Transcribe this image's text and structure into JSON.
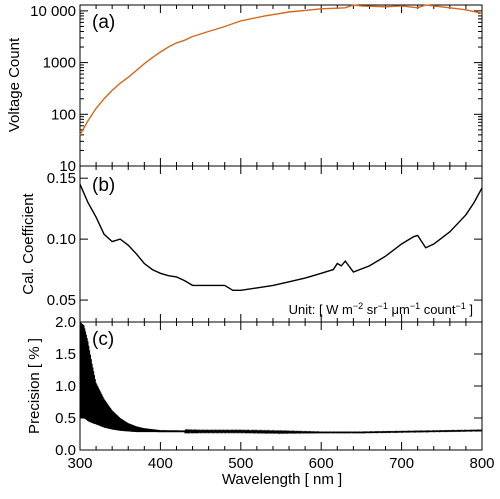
{
  "chart_data": [
    {
      "type": "line",
      "panel_label": "(a)",
      "ylabel": "Voltage Count",
      "y_scale": "log",
      "ylim": [
        10,
        13000
      ],
      "yticks": [
        10,
        100,
        1000,
        10000
      ],
      "ytick_labels": [
        "10",
        "100",
        "1000",
        "10 000"
      ],
      "xlim": [
        300,
        800
      ],
      "series": [
        {
          "color": "#d2691e",
          "x": [
            300,
            310,
            320,
            330,
            340,
            350,
            360,
            370,
            380,
            390,
            400,
            410,
            420,
            430,
            440,
            460,
            480,
            500,
            530,
            560,
            600,
            630,
            640,
            650,
            680,
            700,
            720,
            730,
            740,
            760,
            780,
            800
          ],
          "y": [
            40,
            75,
            130,
            200,
            290,
            400,
            520,
            700,
            950,
            1250,
            1600,
            2000,
            2400,
            2700,
            3200,
            4000,
            5000,
            6400,
            8000,
            9500,
            11000,
            11500,
            13000,
            12500,
            12000,
            12500,
            11500,
            13000,
            12500,
            11500,
            10500,
            9000
          ]
        }
      ]
    },
    {
      "type": "line",
      "panel_label": "(b)",
      "ylabel": "Cal. Coefficient",
      "ylim": [
        0.032,
        0.16
      ],
      "yticks": [
        0.05,
        0.1,
        0.15
      ],
      "ytick_labels": [
        "0.05",
        "0.10",
        "0.15"
      ],
      "xlim": [
        300,
        800
      ],
      "unit_note": {
        "prefix": "Unit: [ W m",
        "sup1": "−2",
        "mid1": " sr",
        "sup2": "−1",
        "mid2": " μm",
        "sup3": "−1",
        "mid3": " count",
        "sup4": "−1",
        "suffix": " ]"
      },
      "series": [
        {
          "color": "#000000",
          "x": [
            300,
            310,
            320,
            330,
            340,
            350,
            360,
            370,
            380,
            390,
            400,
            410,
            420,
            430,
            440,
            460,
            480,
            490,
            500,
            520,
            540,
            560,
            580,
            600,
            610,
            615,
            620,
            625,
            630,
            640,
            660,
            680,
            700,
            710,
            715,
            720,
            725,
            730,
            740,
            750,
            760,
            770,
            780,
            790,
            800
          ],
          "y": [
            0.145,
            0.13,
            0.118,
            0.104,
            0.098,
            0.1,
            0.095,
            0.088,
            0.08,
            0.075,
            0.072,
            0.07,
            0.069,
            0.066,
            0.062,
            0.062,
            0.062,
            0.058,
            0.058,
            0.06,
            0.062,
            0.065,
            0.068,
            0.072,
            0.074,
            0.075,
            0.08,
            0.078,
            0.082,
            0.073,
            0.078,
            0.086,
            0.096,
            0.1,
            0.102,
            0.103,
            0.098,
            0.093,
            0.096,
            0.101,
            0.106,
            0.113,
            0.12,
            0.13,
            0.142
          ]
        }
      ]
    },
    {
      "type": "line",
      "panel_label": "(c)",
      "ylabel": "Precision [ % ]",
      "xlabel": "Wavelength [ nm ]",
      "ylim": [
        0,
        2.0
      ],
      "yticks": [
        0.0,
        0.5,
        1.0,
        1.5,
        2.0
      ],
      "ytick_labels": [
        "0.0",
        "0.5",
        "1.0",
        "1.5",
        "2.0"
      ],
      "xlim": [
        300,
        800
      ],
      "xticks": [
        300,
        400,
        500,
        600,
        700,
        800
      ],
      "xtick_labels": [
        "300",
        "400",
        "500",
        "600",
        "700",
        "800"
      ],
      "series": [
        {
          "color": "#000000",
          "envelope_x": [
            300,
            305,
            310,
            315,
            320,
            330,
            340,
            350,
            360,
            370,
            380,
            400,
            450,
            500,
            550,
            600,
            650,
            700,
            750,
            800
          ],
          "envelope_upper": [
            2.0,
            1.95,
            1.7,
            1.35,
            1.05,
            0.8,
            0.62,
            0.5,
            0.42,
            0.37,
            0.34,
            0.31,
            0.3,
            0.3,
            0.29,
            0.28,
            0.28,
            0.29,
            0.3,
            0.31
          ],
          "envelope_lower": [
            0.5,
            0.5,
            0.45,
            0.42,
            0.4,
            0.35,
            0.32,
            0.3,
            0.29,
            0.28,
            0.28,
            0.28,
            0.28,
            0.28,
            0.27,
            0.27,
            0.27,
            0.28,
            0.29,
            0.3
          ]
        }
      ]
    }
  ]
}
